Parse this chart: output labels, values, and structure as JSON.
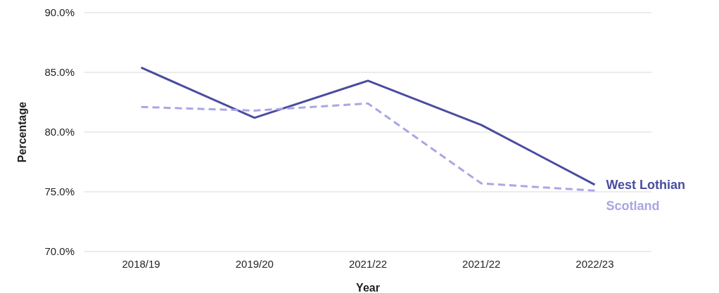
{
  "chart_data": {
    "type": "line",
    "xlabel": "Year",
    "ylabel": "Percentage",
    "categories": [
      "2018/19",
      "2019/20",
      "2021/22",
      "2021/22",
      "2022/23"
    ],
    "series": [
      {
        "name": "West Lothian",
        "color": "#4a4ca0",
        "line_style": "solid",
        "values": [
          85.4,
          81.2,
          84.3,
          80.6,
          75.6
        ]
      },
      {
        "name": "Scotland",
        "color": "#a9a6e6",
        "line_style": "dashed",
        "values": [
          82.1,
          81.8,
          82.4,
          75.7,
          75.1
        ]
      }
    ],
    "ylim": [
      70,
      90
    ],
    "yticks": [
      {
        "value": 70,
        "label": "70.0%"
      },
      {
        "value": 75,
        "label": "75.0%"
      },
      {
        "value": 80,
        "label": "80.0%"
      },
      {
        "value": 85,
        "label": "85.0%"
      },
      {
        "value": 90,
        "label": "90.0%"
      }
    ],
    "grid": "y",
    "legend": false,
    "marker": "none"
  }
}
